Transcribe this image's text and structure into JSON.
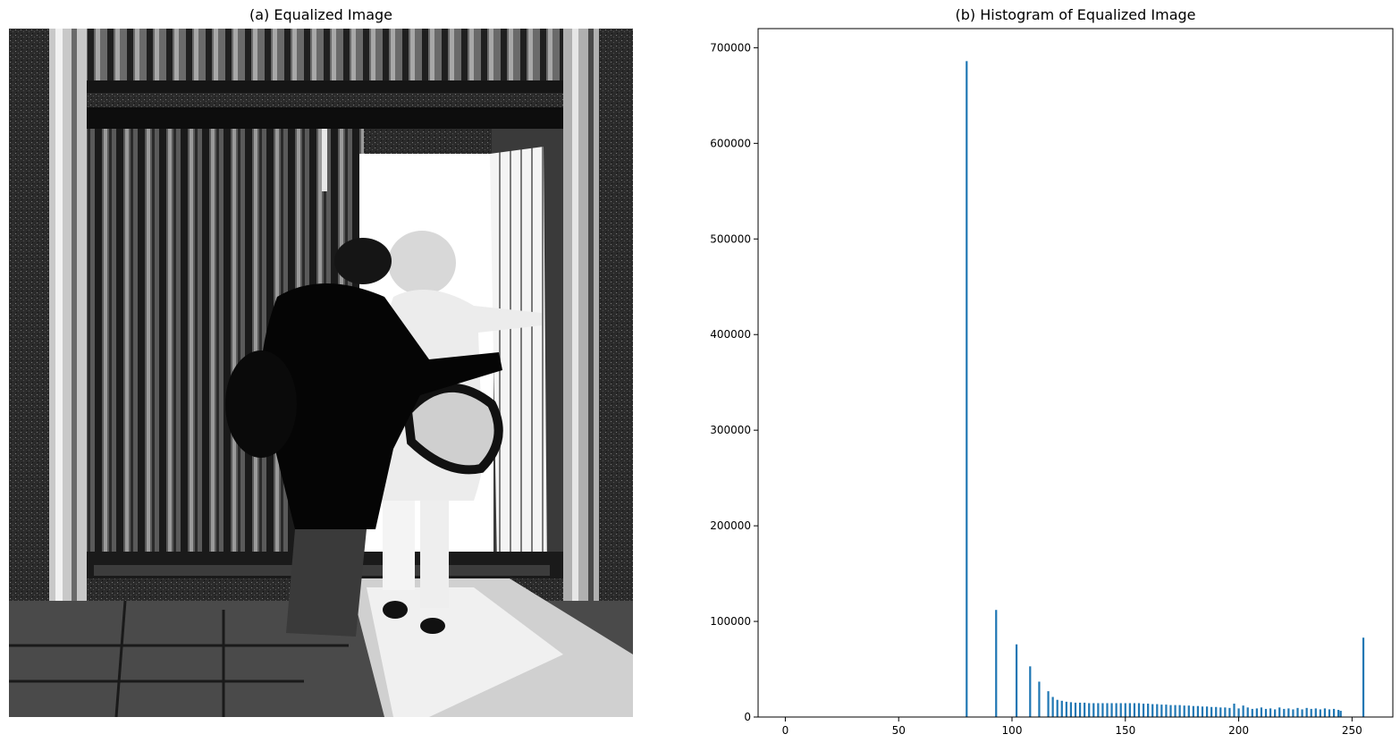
{
  "panels": {
    "image_title": "(a) Equalized Image",
    "hist_title": "(b) Histogram of Equalized Image"
  },
  "colors": {
    "bar": "#1f77b4",
    "axis": "#000000",
    "background": "#ffffff"
  },
  "chart_data": [
    {
      "type": "bar",
      "title": "(b) Histogram of Equalized Image",
      "xlabel": "",
      "ylabel": "",
      "xlim": [
        -12,
        268
      ],
      "ylim": [
        0,
        720000
      ],
      "grid": false,
      "x_ticks": [
        0,
        50,
        100,
        150,
        200,
        250
      ],
      "y_ticks": [
        0,
        100000,
        200000,
        300000,
        400000,
        500000,
        600000,
        700000
      ],
      "x": [
        80,
        93,
        102,
        108,
        112,
        116,
        118,
        120,
        122,
        124,
        126,
        128,
        130,
        132,
        134,
        136,
        138,
        140,
        142,
        144,
        146,
        148,
        150,
        152,
        154,
        156,
        158,
        160,
        162,
        164,
        166,
        168,
        170,
        172,
        174,
        176,
        178,
        180,
        182,
        184,
        186,
        188,
        190,
        192,
        194,
        196,
        198,
        200,
        202,
        204,
        206,
        208,
        210,
        212,
        214,
        216,
        218,
        220,
        222,
        224,
        226,
        228,
        230,
        232,
        234,
        236,
        238,
        240,
        242,
        244,
        245,
        255
      ],
      "values": [
        686000,
        112000,
        76000,
        53000,
        37000,
        27000,
        21000,
        18000,
        17000,
        16000,
        15500,
        15000,
        15000,
        15000,
        14500,
        14500,
        14500,
        14500,
        14500,
        14500,
        14500,
        14500,
        14500,
        14500,
        14500,
        14500,
        14000,
        14000,
        13500,
        13500,
        13000,
        13000,
        12500,
        12500,
        12500,
        12000,
        12000,
        11500,
        11500,
        11000,
        11000,
        10500,
        10500,
        10000,
        10000,
        9500,
        14000,
        9000,
        12000,
        10000,
        8500,
        9000,
        10000,
        8500,
        9000,
        8000,
        10000,
        8500,
        9000,
        8000,
        9500,
        8000,
        9500,
        8500,
        9000,
        8000,
        9000,
        8000,
        8500,
        7500,
        6500,
        83000
      ]
    }
  ]
}
